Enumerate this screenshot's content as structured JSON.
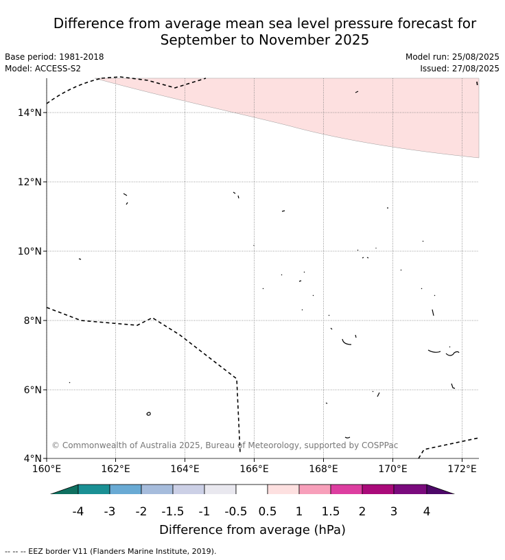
{
  "header": {
    "title_line1": "Difference from average mean sea level pressure forecast for",
    "title_line2": "September to November 2025",
    "base_period": "Base period: 1981-2018",
    "model": "Model: ACCESS-S2",
    "model_run": "Model run: 25/08/2025",
    "issued": "Issued: 27/08/2025"
  },
  "map": {
    "x_ticks": [
      "160°E",
      "162°E",
      "164°E",
      "166°E",
      "168°E",
      "170°E",
      "172°E"
    ],
    "y_ticks": [
      "14°N",
      "12°N",
      "10°N",
      "8°N",
      "6°N",
      "4°N"
    ],
    "copyright": "© Commonwealth of Australia 2025, Bureau of Meteorology, supported by COSPPac",
    "shaded_region": {
      "value_range_hPa": [
        0.5,
        1
      ],
      "color": "#fde0e0"
    }
  },
  "colorbar": {
    "title": "Difference from average (hPa)",
    "labels": [
      "-4",
      "-3",
      "-2",
      "-1.5",
      "-1",
      "-0.5",
      "0.5",
      "1",
      "1.5",
      "2",
      "3",
      "4"
    ],
    "colors": [
      "#1a9094",
      "#69aad4",
      "#a6bcdc",
      "#ccd0e6",
      "#e9e8ef",
      "#ffffff",
      "#fde0e0",
      "#f79fba",
      "#dd3ea0",
      "#aa0a7a",
      "#7a0a7d"
    ],
    "low_extend_color": "#0f7060",
    "high_extend_color": "#4d0868"
  },
  "legend": {
    "eez": "--  --  -- EEZ border V11 (Flanders Marine Institute, 2019)."
  }
}
